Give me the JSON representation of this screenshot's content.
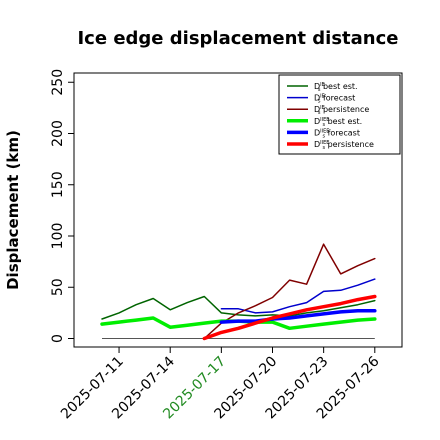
{
  "chart_data": {
    "type": "line",
    "title": "Ice edge displacement distance",
    "xlabel": "",
    "ylabel": "Displacement (km)",
    "ylim": [
      0,
      260
    ],
    "yticks": [
      0,
      50,
      100,
      150,
      200,
      250
    ],
    "x": [
      "2025-07-10",
      "2025-07-11",
      "2025-07-12",
      "2025-07-13",
      "2025-07-14",
      "2025-07-15",
      "2025-07-16",
      "2025-07-17",
      "2025-07-18",
      "2025-07-19",
      "2025-07-20",
      "2025-07-21",
      "2025-07-22",
      "2025-07-23",
      "2025-07-24",
      "2025-07-25",
      "2025-07-26"
    ],
    "xticks": [
      "2025-07-11",
      "2025-07-14",
      "2025-07-17",
      "2025-07-20",
      "2025-07-23",
      "2025-07-26"
    ],
    "xtick_colors": [
      "#000000",
      "#000000",
      "#228B22",
      "#000000",
      "#000000",
      "#000000"
    ],
    "zero_line": true,
    "grid": false,
    "legend_position": "top-right",
    "series": [
      {
        "name": "D^IE_s best est.",
        "color": "#006400",
        "width": 1.5,
        "values": [
          19,
          25,
          33,
          39,
          28,
          35,
          41,
          25,
          23,
          22,
          23,
          22,
          25,
          27,
          30,
          33,
          37
        ]
      },
      {
        "name": "D^IE_s forecast",
        "color": "#0000CD",
        "width": 1.5,
        "values": [
          null,
          null,
          null,
          null,
          null,
          null,
          null,
          29,
          29,
          25,
          26,
          31,
          35,
          46,
          47,
          52,
          58
        ]
      },
      {
        "name": "D^IE_s persistence",
        "color": "#800000",
        "width": 1.5,
        "values": [
          null,
          null,
          null,
          null,
          null,
          null,
          0,
          15,
          25,
          32,
          40,
          57,
          53,
          92,
          63,
          71,
          78
        ]
      },
      {
        "name": "D^IIEE_s best est.",
        "color": "#00EE00",
        "width": 3.5,
        "values": [
          14,
          16,
          18,
          20,
          11,
          13,
          15,
          17,
          17,
          16,
          16,
          10,
          12,
          14,
          16,
          18,
          19
        ]
      },
      {
        "name": "D^IIEE_s forecast",
        "color": "#0000FF",
        "width": 3.5,
        "values": [
          null,
          null,
          null,
          null,
          null,
          null,
          null,
          16,
          17,
          17,
          19,
          20,
          22,
          24,
          26,
          27,
          27
        ]
      },
      {
        "name": "D^IIEE_s persistence",
        "color": "#FF0000",
        "width": 3.5,
        "values": [
          null,
          null,
          null,
          null,
          null,
          null,
          0,
          6,
          10,
          15,
          20,
          24,
          28,
          31,
          34,
          38,
          41
        ]
      }
    ]
  }
}
